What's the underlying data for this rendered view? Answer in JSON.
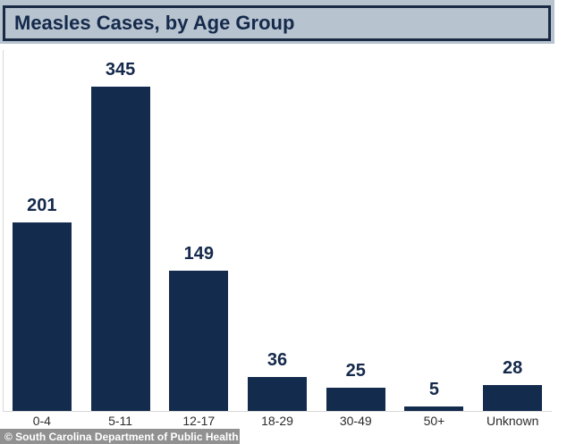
{
  "header": {
    "title": "Measles Cases, by Age Group"
  },
  "footer": {
    "credit": "© South Carolina Department of Public Health"
  },
  "colors": {
    "bar": "#132c4e",
    "navy_text": "#14294b",
    "title_bg": "#b7c3cf",
    "title_border": "#1b2a44",
    "axis_line": "#d9d9d9",
    "category_label": "#2b2b2b",
    "footer_bg": "#888888",
    "footer_text": "#ffffff"
  },
  "chart_data": {
    "type": "bar",
    "title": "Measles Cases, by Age Group",
    "categories": [
      "0-4",
      "5-11",
      "12-17",
      "18-29",
      "30-49",
      "50+",
      "Unknown"
    ],
    "values": [
      201,
      345,
      149,
      36,
      25,
      5,
      28
    ],
    "xlabel": "",
    "ylabel": "",
    "ylim": [
      0,
      380
    ],
    "grid": false,
    "legend": false,
    "bar_color": "#132c4e",
    "value_labels_shown": true
  }
}
